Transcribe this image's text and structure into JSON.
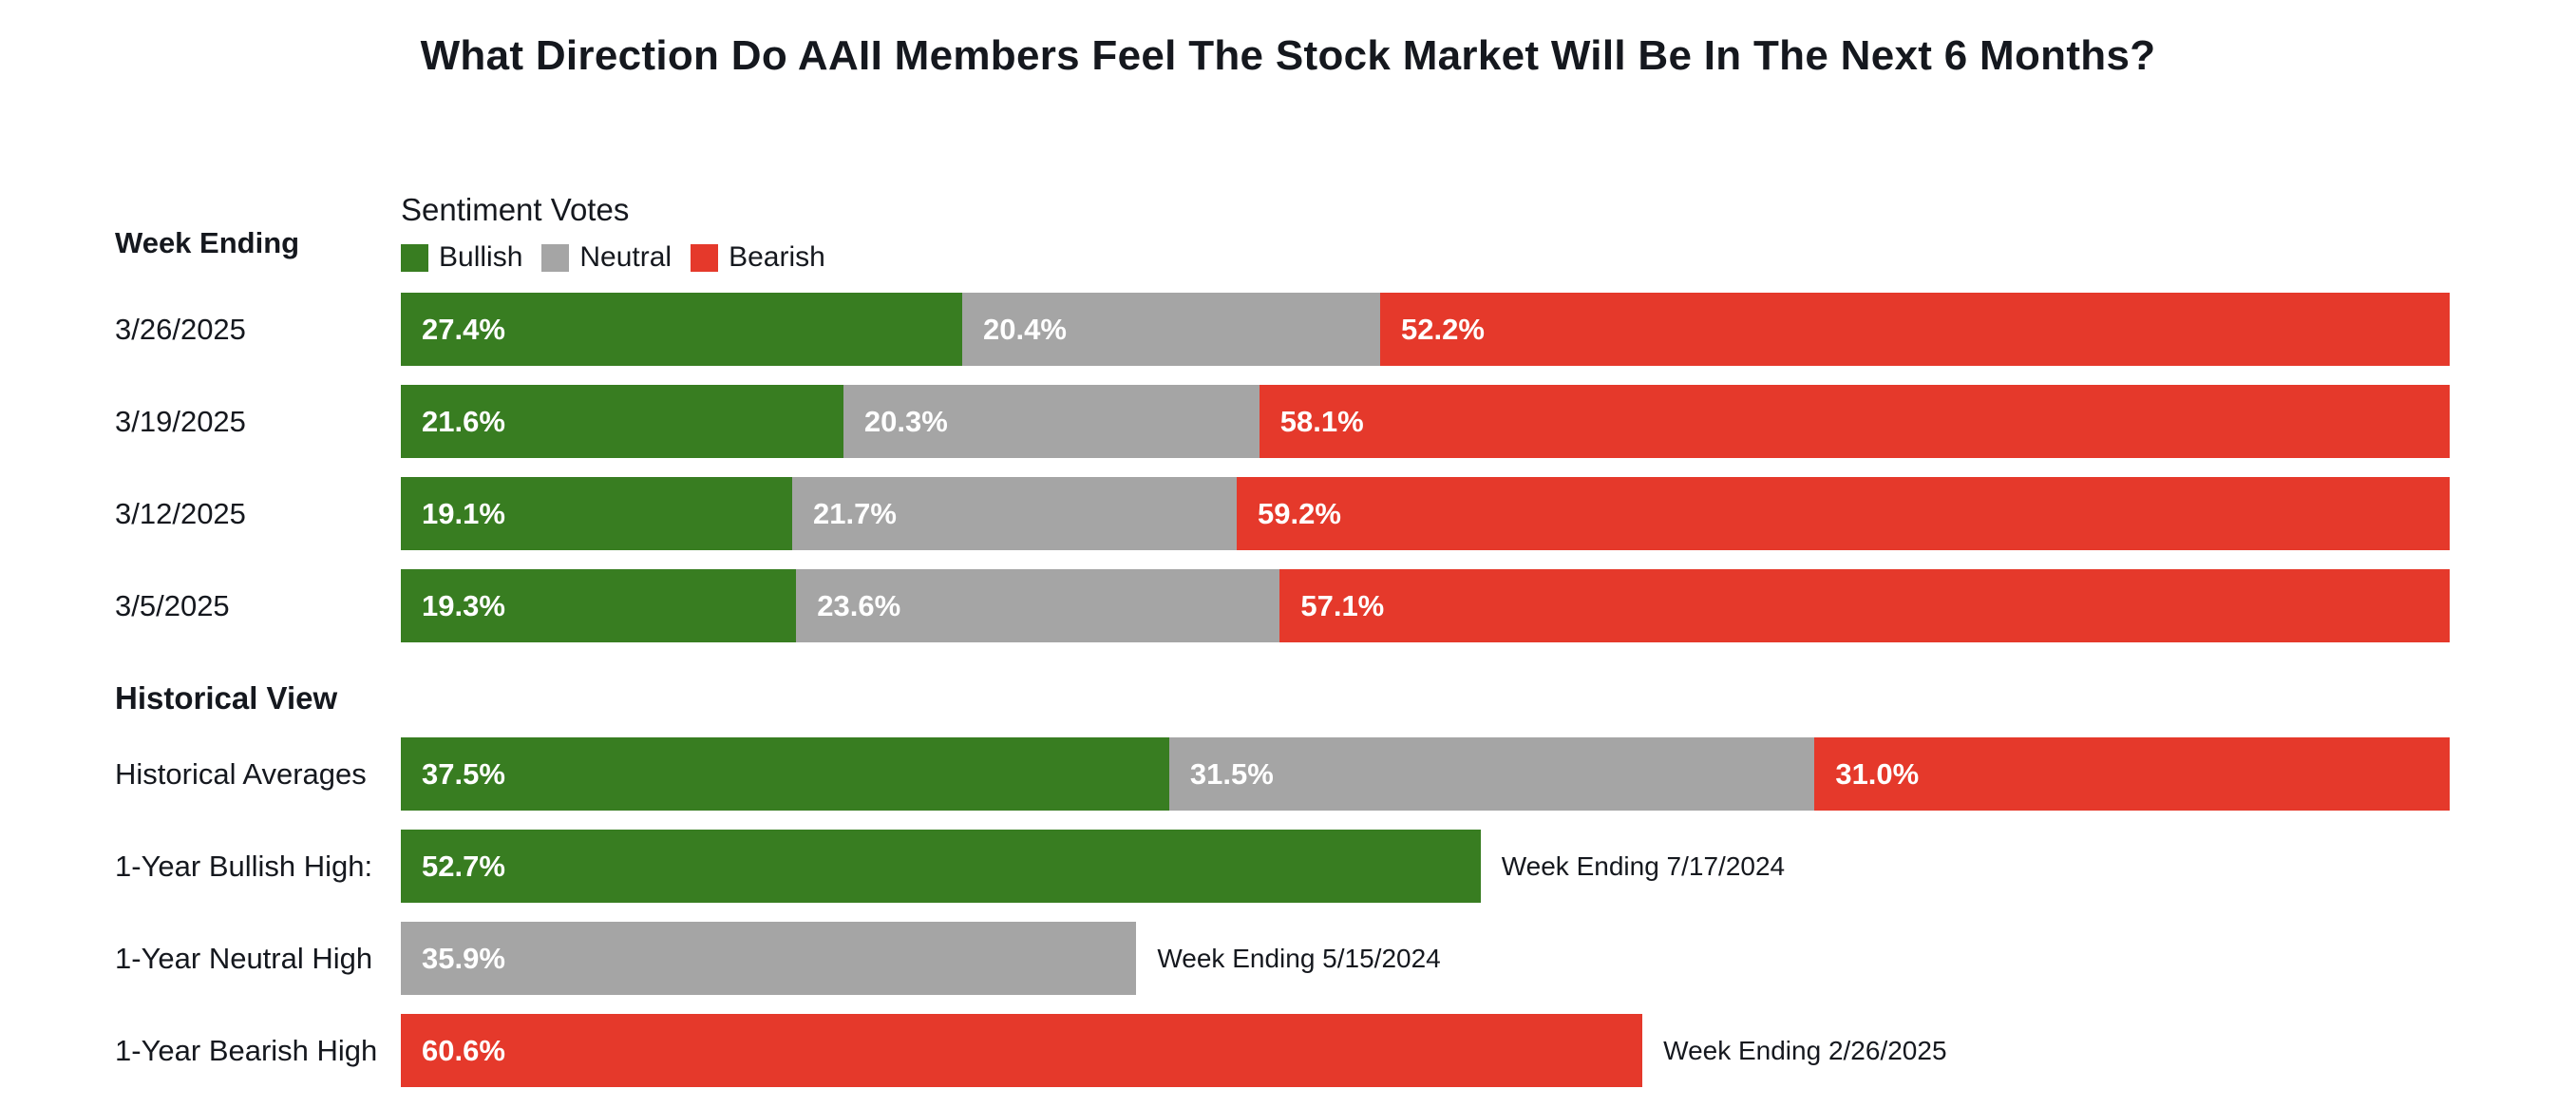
{
  "title": "What Direction Do AAII Members Feel The Stock Market Will Be In The Next 6 Months?",
  "colors": {
    "bullish": "#387d21",
    "neutral": "#a5a5a5",
    "bearish": "#e5392b"
  },
  "labels": {
    "week_ending_header": "Week Ending",
    "historical_view_header": "Historical View",
    "legend_title": "Sentiment Votes"
  },
  "chart_data": {
    "type": "bar",
    "orientation": "horizontal",
    "stacked": true,
    "unit": "percent",
    "xlim": [
      0,
      100
    ],
    "legend_position": "top",
    "series_names": [
      "Bullish",
      "Neutral",
      "Bearish"
    ],
    "weekly": [
      {
        "week": "3/26/2025",
        "bullish": 27.4,
        "neutral": 20.4,
        "bearish": 52.2
      },
      {
        "week": "3/19/2025",
        "bullish": 21.6,
        "neutral": 20.3,
        "bearish": 58.1
      },
      {
        "week": "3/12/2025",
        "bullish": 19.1,
        "neutral": 21.7,
        "bearish": 59.2
      },
      {
        "week": "3/5/2025",
        "bullish": 19.3,
        "neutral": 23.6,
        "bearish": 57.1
      }
    ],
    "historical_averages": {
      "label": "Historical Averages",
      "bullish": 37.5,
      "neutral": 31.5,
      "bearish": 31.0
    },
    "one_year_highs": [
      {
        "label": "1-Year Bullish High:",
        "sentiment": "bullish",
        "value": 52.7,
        "note": "Week Ending 7/17/2024"
      },
      {
        "label": "1-Year Neutral High",
        "sentiment": "neutral",
        "value": 35.9,
        "note": "Week Ending 5/15/2024"
      },
      {
        "label": "1-Year Bearish High",
        "sentiment": "bearish",
        "value": 60.6,
        "note": "Week Ending 2/26/2025"
      }
    ]
  }
}
